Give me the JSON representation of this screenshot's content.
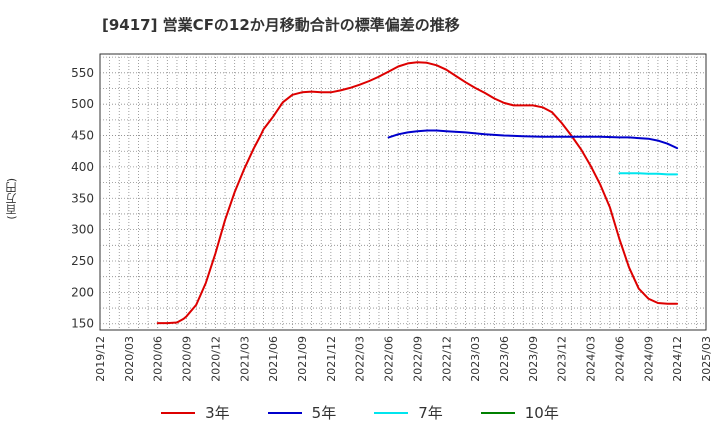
{
  "chart_data": {
    "type": "line",
    "title": "[9417]  営業CFの12か月移動合計の標準偏差の推移",
    "ylabel": "(百万円)",
    "xlabel": "",
    "ylim": [
      140,
      580
    ],
    "yticks": [
      150,
      200,
      250,
      300,
      350,
      400,
      450,
      500,
      550
    ],
    "xticks": [
      "2019/12",
      "2020/03",
      "2020/06",
      "2020/09",
      "2020/12",
      "2021/03",
      "2021/06",
      "2021/09",
      "2021/12",
      "2022/03",
      "2022/06",
      "2022/09",
      "2022/12",
      "2023/03",
      "2023/06",
      "2023/09",
      "2023/12",
      "2024/03",
      "2024/06",
      "2024/09",
      "2024/12",
      "2025/03"
    ],
    "grid": true,
    "x_units": "month index from 2019/12",
    "series": [
      {
        "name": "3年",
        "color": "#dd0000",
        "x": [
          6,
          7,
          8,
          8.7,
          9,
          10,
          11,
          12,
          13,
          14,
          15,
          16,
          16.7,
          17,
          17.5,
          18,
          19,
          20,
          21,
          22,
          23,
          24,
          25,
          26,
          27,
          28,
          29,
          30,
          31,
          32,
          33,
          34,
          35,
          36,
          37,
          38,
          39,
          40,
          41,
          42,
          43,
          44,
          45,
          46,
          47,
          48,
          49,
          50,
          51,
          52,
          53,
          54,
          55,
          56,
          57,
          58,
          59,
          60
        ],
        "values": [
          151,
          151,
          152,
          158,
          162,
          180,
          215,
          262,
          315,
          360,
          397,
          430,
          450,
          460,
          470,
          480,
          503,
          515,
          519,
          520,
          519,
          519,
          522,
          526,
          531,
          537,
          544,
          552,
          560,
          565,
          567,
          566,
          562,
          555,
          545,
          535,
          526,
          518,
          509,
          502,
          498,
          498,
          498,
          495,
          487,
          470,
          450,
          428,
          402,
          372,
          336,
          285,
          240,
          206,
          190,
          183,
          182,
          182
        ]
      },
      {
        "name": "5年",
        "color": "#0000cc",
        "x": [
          30,
          31,
          32,
          33,
          34,
          35,
          36,
          38,
          40,
          42,
          44,
          46,
          48,
          50,
          52,
          54,
          55,
          56,
          57,
          58,
          59,
          60
        ],
        "values": [
          447,
          452,
          455,
          457,
          458,
          458,
          457,
          455,
          452,
          450,
          449,
          448,
          448,
          448,
          448,
          447,
          447,
          446,
          445,
          442,
          437,
          430
        ]
      },
      {
        "name": "7年",
        "color": "#00e5ee",
        "x": [
          54,
          55,
          56,
          57,
          58,
          59,
          60
        ],
        "values": [
          390,
          390,
          390,
          389,
          389,
          388,
          388
        ]
      },
      {
        "name": "10年",
        "color": "#008000",
        "x": [],
        "values": []
      }
    ]
  }
}
